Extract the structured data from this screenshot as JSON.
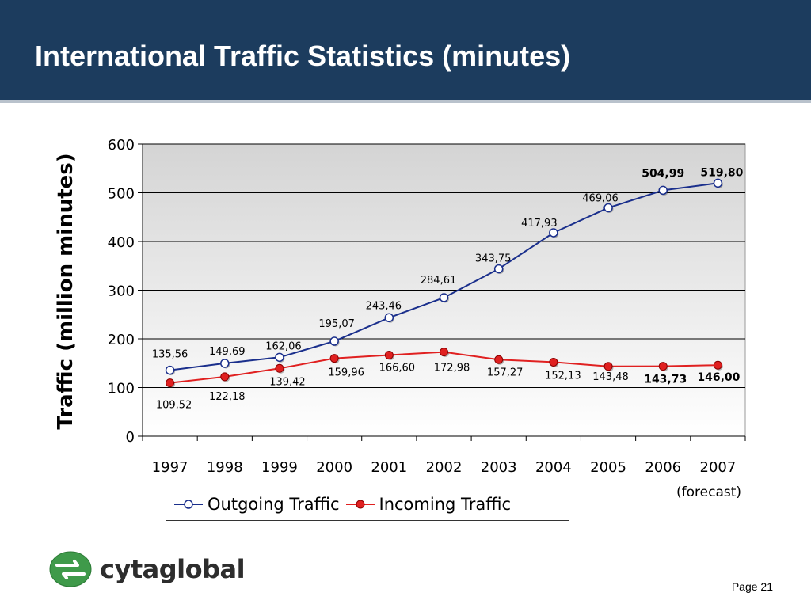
{
  "slide": {
    "title": "International Traffic Statistics (minutes)",
    "page_label": "Page 21",
    "logo_text": "cytaglobal"
  },
  "colors": {
    "header": "#1c3c5e",
    "outgoing": "#1a2f8c",
    "incoming": "#e02020",
    "outgoing_marker": "#ffffff",
    "incoming_marker": "#e02020"
  },
  "chart_data": {
    "type": "line",
    "categories": [
      "1997",
      "1998",
      "1999",
      "2000",
      "2001",
      "2002",
      "2003",
      "2004",
      "2005",
      "2006",
      "2007"
    ],
    "category_note": "(forecast)",
    "ylabel": "Traffic (million minutes)",
    "ylim": [
      0,
      600
    ],
    "yticks": [
      0,
      100,
      200,
      300,
      400,
      500,
      600
    ],
    "grid": true,
    "legend_position": "bottom-center",
    "series": [
      {
        "name": "Outgoing Traffic",
        "values": [
          135.56,
          149.69,
          162.06,
          195.07,
          243.46,
          284.61,
          343.75,
          417.93,
          469.06,
          504.99,
          519.8
        ],
        "labels": [
          "135,56",
          "149,69",
          "162,06",
          "195,07",
          "243,46",
          "284,61",
          "343,75",
          "417,93",
          "469,06",
          "504,99",
          "519,80"
        ]
      },
      {
        "name": "Incoming Traffic",
        "values": [
          109.52,
          122.18,
          139.42,
          159.96,
          166.6,
          172.98,
          157.27,
          152.13,
          143.48,
          143.73,
          146.0
        ],
        "labels": [
          "109,52",
          "122,18",
          "139,42",
          "159,96",
          "166,60",
          "172,98",
          "157,27",
          "152,13",
          "143,48",
          "143,73",
          "146,00"
        ]
      }
    ]
  }
}
